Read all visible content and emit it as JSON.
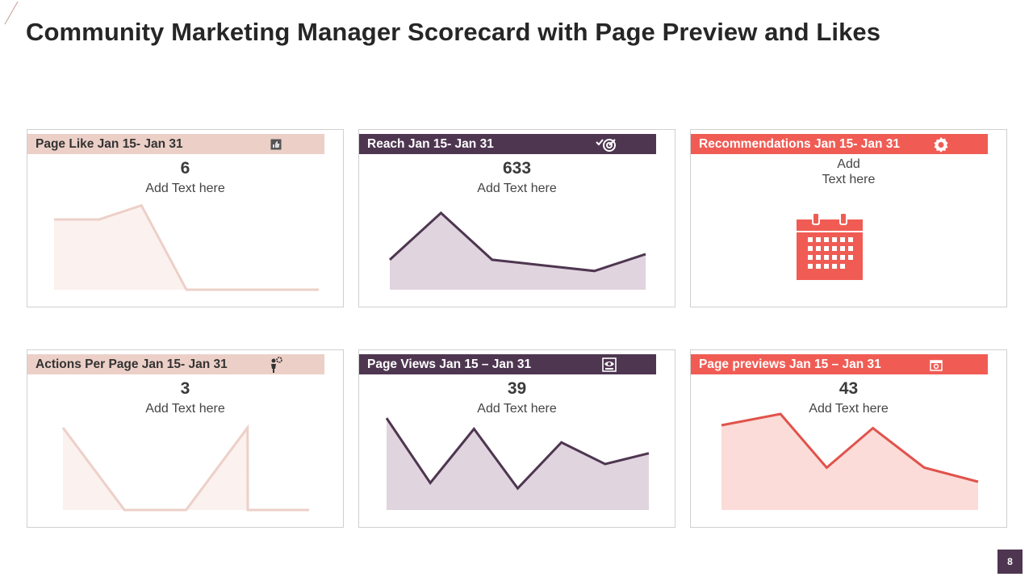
{
  "title": "Community Marketing Manager Scorecard with Page Preview and Likes",
  "page_number": "8",
  "colors": {
    "pink": "#ecd0c8",
    "purple": "#4e3650",
    "red": "#f05c54"
  },
  "cards": [
    {
      "title": "Page Like Jan 15- Jan 31",
      "value": "6",
      "caption": "Add  Text here",
      "icon": "thumbs-up-icon"
    },
    {
      "title": "Reach Jan 15- Jan 31",
      "value": "633",
      "caption": "Add  Text here",
      "icon": "target-check-icon"
    },
    {
      "title": "Recommendations Jan 15- Jan 31",
      "caption_line1": "Add",
      "caption_line2": "Text here",
      "icon": "badge-icon",
      "illustration": "calendar-icon"
    },
    {
      "title": "Actions Per Page Jan 15- Jan 31",
      "value": "3",
      "caption": "Add  Text here",
      "icon": "person-gear-icon"
    },
    {
      "title": "Page Views Jan 15 – Jan 31",
      "value": "39",
      "caption": "Add  Text here",
      "icon": "eye-monitor-icon"
    },
    {
      "title": "Page previews Jan 15 – Jan 31",
      "value": "43",
      "caption": "Add  Text here",
      "icon": "camera-icon"
    }
  ],
  "chart_data": [
    {
      "type": "area",
      "series": [
        {
          "values": [
            6,
            6,
            7.2,
            0,
            0,
            0,
            0
          ]
        }
      ],
      "ylim": [
        0,
        8
      ]
    },
    {
      "type": "area",
      "series": [
        {
          "values": [
            1.6,
            4.1,
            1.6,
            1.3,
            1.0,
            1.9
          ]
        }
      ],
      "ylim": [
        0,
        5
      ]
    },
    {
      "type": "area",
      "series": [
        {
          "values": [
            4,
            0,
            0,
            4,
            0,
            0
          ]
        }
      ],
      "ylim": [
        0,
        4
      ]
    },
    {
      "type": "area",
      "series": [
        {
          "values": [
            3.4,
            1.0,
            3.0,
            0.8,
            2.5,
            1.7,
            2.1
          ]
        }
      ],
      "ylim": [
        0,
        4
      ]
    },
    {
      "type": "area",
      "series": [
        {
          "values": [
            3.0,
            3.4,
            1.5,
            2.9,
            1.5,
            1.0
          ]
        }
      ],
      "ylim": [
        0,
        4
      ]
    }
  ]
}
